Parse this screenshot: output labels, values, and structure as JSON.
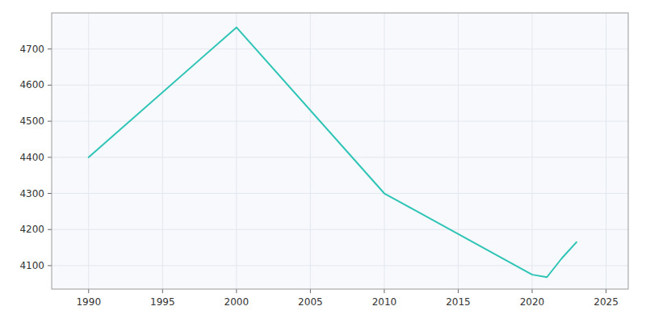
{
  "chart_data": {
    "type": "line",
    "x": [
      1990,
      2000,
      2010,
      2020,
      2021,
      2022,
      2023
    ],
    "values": [
      4400,
      4760,
      4300,
      4075,
      4068,
      4120,
      4165
    ],
    "color": "#2ec4b6",
    "xlim": [
      1987.5,
      2026.5
    ],
    "ylim": [
      4035,
      4800
    ],
    "xticks": [
      1990,
      1995,
      2000,
      2005,
      2010,
      2015,
      2020,
      2025
    ],
    "yticks": [
      4100,
      4200,
      4300,
      4400,
      4500,
      4600,
      4700
    ],
    "grid": true
  }
}
